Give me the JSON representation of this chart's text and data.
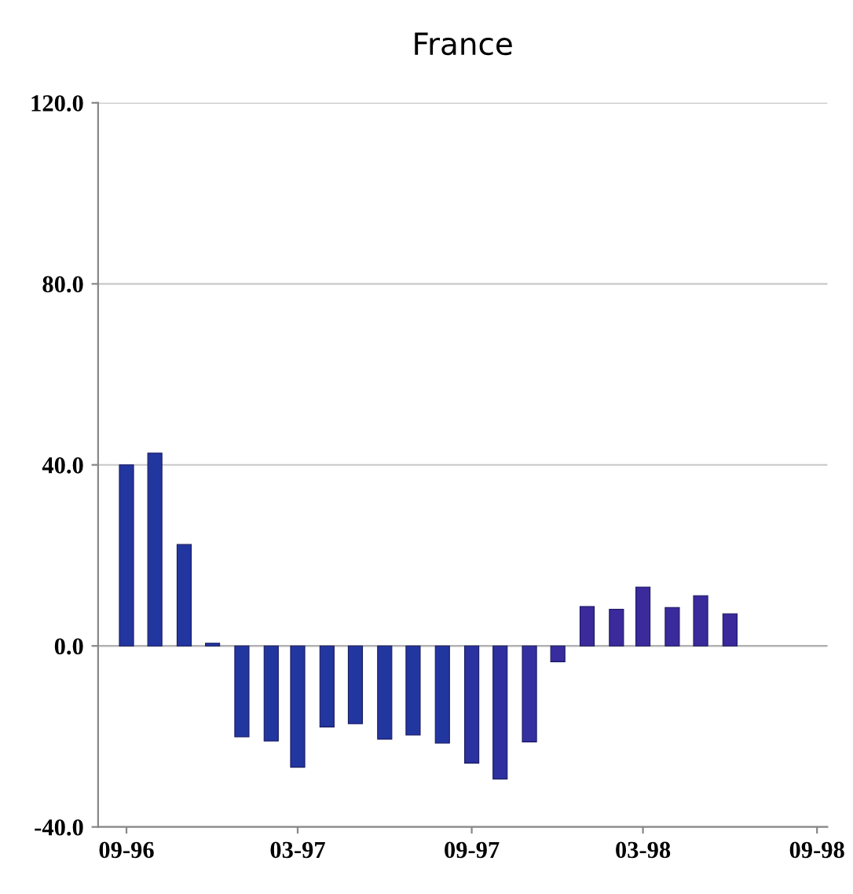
{
  "chart_data": {
    "type": "bar",
    "title": "France",
    "x": [
      "1996-09",
      "1996-10",
      "1996-11",
      "1996-12",
      "1997-01",
      "1997-02",
      "1997-03",
      "1997-04",
      "1997-05",
      "1997-06",
      "1997-07",
      "1997-08",
      "1997-09",
      "1997-10",
      "1997-11",
      "1997-12",
      "1998-01",
      "1998-02",
      "1998-03",
      "1998-04",
      "1998-05",
      "1998-06"
    ],
    "values": [
      40,
      42.6,
      22.4,
      0.6,
      -20.1,
      -21,
      -26.8,
      -17.9,
      -17.2,
      -20.6,
      -19.7,
      -21.5,
      -25.9,
      -29.4,
      -21.2,
      -3.5,
      8.7,
      8.1,
      13,
      8.5,
      11.1,
      7.1
    ],
    "colors": [
      "#2236a0",
      "#2236a0",
      "#2236a0",
      "#2236a0",
      "#2236a0",
      "#2236a0",
      "#2236a0",
      "#2236a0",
      "#2236a0",
      "#2236a0",
      "#2236a0",
      "#2236a0",
      "#2a32a0",
      "#2e30a0",
      "#3430a0",
      "#382c9e",
      "#3a2a9c",
      "#3a2a9c",
      "#3a2a9c",
      "#3a2a9c",
      "#3a2a9c",
      "#3a2a9c"
    ],
    "xlim": [
      "1996-08-02",
      "1998-09-12"
    ],
    "xticks": [
      {
        "value": "1996-09",
        "label": "09-96"
      },
      {
        "value": "1997-03",
        "label": "03-97"
      },
      {
        "value": "1997-09",
        "label": "09-97"
      },
      {
        "value": "1998-03",
        "label": "03-98"
      },
      {
        "value": "1998-09",
        "label": "09-98"
      }
    ],
    "ylim": [
      -40,
      120
    ],
    "yticks": [
      {
        "value": -40,
        "label": "-40.0"
      },
      {
        "value": 0,
        "label": "0.0"
      },
      {
        "value": 40,
        "label": "40.0"
      },
      {
        "value": 80,
        "label": "80.0"
      },
      {
        "value": 120,
        "label": "120.0"
      }
    ],
    "grid": "y"
  }
}
